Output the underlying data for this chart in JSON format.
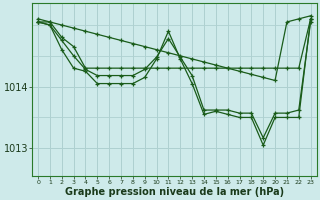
{
  "background_color": "#ceeaea",
  "grid_color": "#aed0d0",
  "line_color": "#1a5c1a",
  "marker_color": "#1a5c1a",
  "xlabel": "Graphe pression niveau de la mer (hPa)",
  "xlabel_fontsize": 7,
  "xticks": [
    0,
    1,
    2,
    3,
    4,
    5,
    6,
    7,
    8,
    9,
    10,
    11,
    12,
    13,
    14,
    15,
    16,
    17,
    18,
    19,
    20,
    21,
    22,
    23
  ],
  "yticks": [
    1013,
    1014
  ],
  "ylim": [
    1012.55,
    1015.35
  ],
  "xlim": [
    -0.5,
    23.5
  ],
  "series": [
    [
      1015.1,
      1015.05,
      1015.0,
      1014.95,
      1014.9,
      1014.85,
      1014.8,
      1014.75,
      1014.7,
      1014.65,
      1014.6,
      1014.55,
      1014.5,
      1014.45,
      1014.4,
      1014.35,
      1014.3,
      1014.25,
      1014.2,
      1014.15,
      1014.1,
      1015.05,
      1015.1,
      1015.15
    ],
    [
      1015.05,
      1015.05,
      1014.8,
      1014.65,
      1014.3,
      1014.3,
      1014.3,
      1014.3,
      1014.3,
      1014.3,
      1014.3,
      1014.3,
      1014.3,
      1014.3,
      1014.3,
      1014.3,
      1014.3,
      1014.3,
      1014.3,
      1014.3,
      1014.3,
      1014.3,
      1014.3,
      1015.1
    ],
    [
      1015.05,
      1015.0,
      1014.75,
      1014.5,
      1014.28,
      1014.18,
      1014.18,
      1014.18,
      1014.18,
      1014.28,
      1014.48,
      1014.78,
      1014.48,
      1014.18,
      1013.62,
      1013.62,
      1013.62,
      1013.57,
      1013.57,
      1013.17,
      1013.57,
      1013.57,
      1013.62,
      1015.05
    ],
    [
      1015.05,
      1015.0,
      1014.6,
      1014.3,
      1014.25,
      1014.05,
      1014.05,
      1014.05,
      1014.05,
      1014.15,
      1014.45,
      1014.9,
      1014.45,
      1014.05,
      1013.55,
      1013.6,
      1013.55,
      1013.5,
      1013.5,
      1013.05,
      1013.5,
      1013.5,
      1013.5,
      1015.1
    ]
  ]
}
